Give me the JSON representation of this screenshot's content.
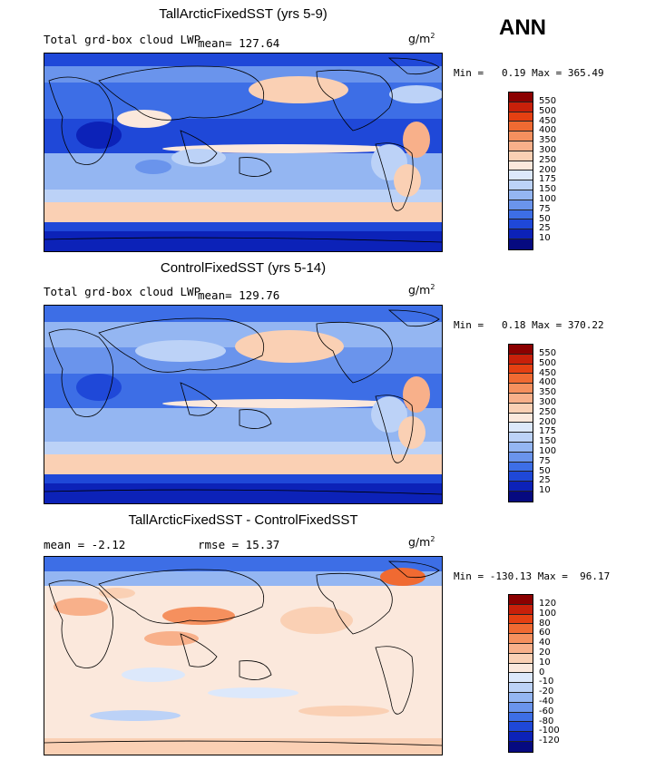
{
  "season": "ANN",
  "units_base": "g/m",
  "units_exp": "2",
  "panels": [
    {
      "title": "TallArcticFixedSST (yrs 5-9)",
      "field": "Total grd-box cloud LWP",
      "mean": "mean= 127.64",
      "minmax": "Min =   0.19 Max = 365.49",
      "levels": [
        "550",
        "500",
        "450",
        "400",
        "350",
        "300",
        "250",
        "200",
        "175",
        "150",
        "100",
        "75",
        "50",
        "25",
        "10"
      ],
      "colors": [
        "#8b0000",
        "#c8200a",
        "#e54012",
        "#f06a32",
        "#f5905e",
        "#f8b08a",
        "#fad0b4",
        "#fbe8dc",
        "#dce8fb",
        "#bcd2f7",
        "#94b6f2",
        "#6a94ec",
        "#3d6ee6",
        "#1f48d8",
        "#0c22b8",
        "#060a80"
      ]
    },
    {
      "title": "ControlFixedSST (yrs 5-14)",
      "field": "Total grd-box cloud LWP",
      "mean": "mean= 129.76",
      "minmax": "Min =   0.18 Max = 370.22",
      "levels": [
        "550",
        "500",
        "450",
        "400",
        "350",
        "300",
        "250",
        "200",
        "175",
        "150",
        "100",
        "75",
        "50",
        "25",
        "10"
      ],
      "colors": [
        "#8b0000",
        "#c8200a",
        "#e54012",
        "#f06a32",
        "#f5905e",
        "#f8b08a",
        "#fad0b4",
        "#fbe8dc",
        "#dce8fb",
        "#bcd2f7",
        "#94b6f2",
        "#6a94ec",
        "#3d6ee6",
        "#1f48d8",
        "#0c22b8",
        "#060a80"
      ]
    },
    {
      "title": "TallArcticFixedSST - ControlFixedSST",
      "mean": "mean =   -2.12",
      "rmse": "rmse =   15.37",
      "minmax": "Min = -130.13 Max =  96.17",
      "levels": [
        "120",
        "100",
        "80",
        "60",
        "40",
        "20",
        "10",
        "0",
        "-10",
        "-20",
        "-40",
        "-60",
        "-80",
        "-100",
        "-120"
      ],
      "colors": [
        "#8b0000",
        "#c8200a",
        "#e54012",
        "#f06a32",
        "#f5905e",
        "#f8b08a",
        "#fad0b4",
        "#fbe8dc",
        "#dce8fb",
        "#bcd2f7",
        "#94b6f2",
        "#6a94ec",
        "#3d6ee6",
        "#1f48d8",
        "#0c22b8",
        "#060a80"
      ]
    }
  ]
}
